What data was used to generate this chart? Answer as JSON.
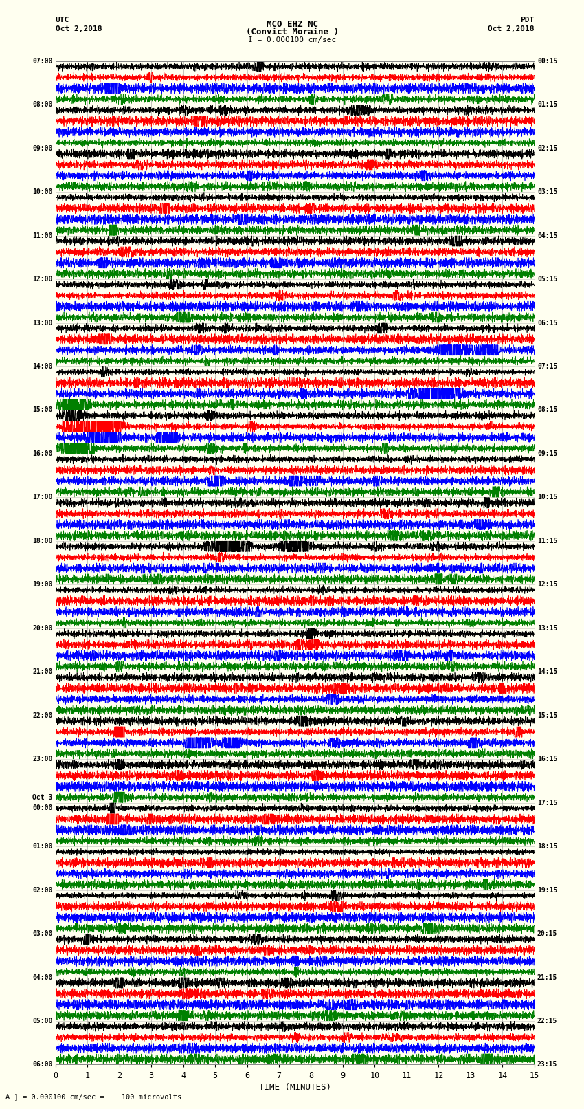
{
  "title_line1": "MCO EHZ NC",
  "title_line2": "(Convict Moraine )",
  "scale_text": "I = 0.000100 cm/sec",
  "utc_label": "UTC",
  "utc_date": "Oct 2,2018",
  "pdt_label": "PDT",
  "pdt_date": "Oct 2,2018",
  "footer_text": "A ] = 0.000100 cm/sec =    100 microvolts",
  "xlabel": "TIME (MINUTES)",
  "x_ticks": [
    0,
    1,
    2,
    3,
    4,
    5,
    6,
    7,
    8,
    9,
    10,
    11,
    12,
    13,
    14,
    15
  ],
  "time_minutes": 15,
  "utc_hour_labels": [
    "07:00",
    "08:00",
    "09:00",
    "10:00",
    "11:00",
    "12:00",
    "13:00",
    "14:00",
    "15:00",
    "16:00",
    "17:00",
    "18:00",
    "19:00",
    "20:00",
    "21:00",
    "22:00",
    "23:00",
    "Oct 3\n00:00",
    "01:00",
    "02:00",
    "03:00",
    "04:00",
    "05:00",
    "06:00"
  ],
  "pdt_hour_labels": [
    "00:15",
    "01:15",
    "02:15",
    "03:15",
    "04:15",
    "05:15",
    "06:15",
    "07:15",
    "08:15",
    "09:15",
    "10:15",
    "11:15",
    "12:15",
    "13:15",
    "14:15",
    "15:15",
    "16:15",
    "17:15",
    "18:15",
    "19:15",
    "20:15",
    "21:15",
    "22:15",
    "23:15"
  ],
  "colors": [
    "black",
    "red",
    "blue",
    "green"
  ],
  "bg_color": "#fffff0",
  "grid_color": "#888888",
  "n_hours": 23,
  "traces_per_hour": 4,
  "noise_base_amp": 0.08,
  "n_samples": 3000,
  "seed": 42
}
